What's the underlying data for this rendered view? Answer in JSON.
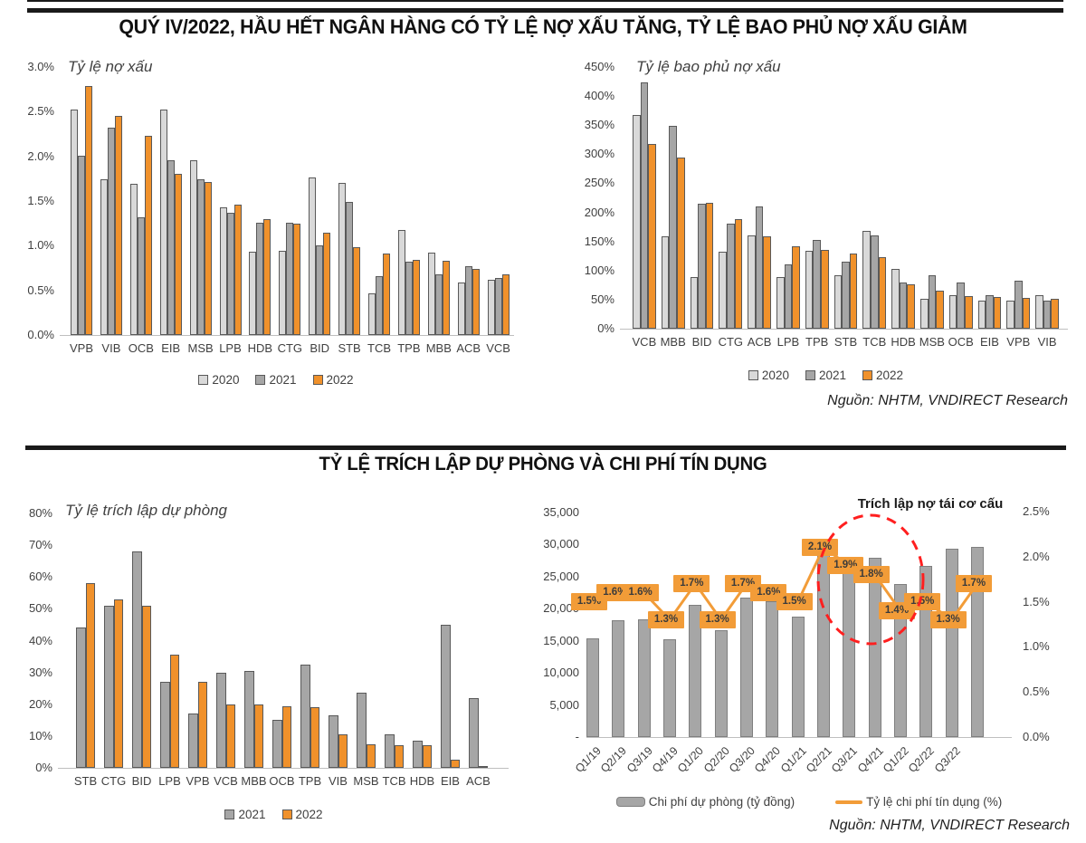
{
  "page": {
    "section1_title": "QUÝ IV/2022, HẦU HẾT NGÂN HÀNG CÓ TỶ LỆ NỢ XẤU TĂNG, TỶ LỆ BAO PHỦ NỢ XẤU GIẢM",
    "section2_title": "TỶ LỆ TRÍCH LẬP DỰ PHÒNG VÀ CHI PHÍ TÍN DỤNG",
    "source_text": "Nguồn: NHTM, VNDIRECT Research"
  },
  "colors": {
    "gray_light": "#D9D9D9",
    "gray_mid": "#A6A6A6",
    "orange": "#F0912B",
    "line_orange": "#F29C38",
    "red_circle": "#FF1F1F",
    "bar_border": "#595959"
  },
  "chart_data": [
    {
      "type": "bar",
      "title": "Tỷ lệ nợ xấu",
      "ylim": [
        0,
        3
      ],
      "ymax": 3,
      "yticks": [
        "3.0%",
        "2.5%",
        "2.0%",
        "1.5%",
        "1.0%",
        "0.5%",
        "0.0%"
      ],
      "legend_position": "bottom",
      "categories": [
        "VPB",
        "VIB",
        "OCB",
        "EIB",
        "MSB",
        "LPB",
        "HDB",
        "CTG",
        "BID",
        "STB",
        "TCB",
        "TPB",
        "MBB",
        "ACB",
        "VCB"
      ],
      "series": [
        {
          "name": "2020",
          "color": "#D9D9D9",
          "values": [
            2.52,
            1.74,
            1.69,
            2.52,
            1.96,
            1.43,
            0.93,
            0.94,
            1.76,
            1.7,
            0.47,
            1.18,
            0.92,
            0.59,
            0.62
          ]
        },
        {
          "name": "2021",
          "color": "#A6A6A6",
          "values": [
            2.01,
            2.32,
            1.32,
            1.96,
            1.74,
            1.37,
            1.26,
            1.26,
            1.0,
            1.49,
            0.66,
            0.82,
            0.68,
            0.77,
            0.64
          ]
        },
        {
          "name": "2022",
          "color": "#F0912B",
          "values": [
            2.79,
            2.45,
            2.23,
            1.8,
            1.71,
            1.46,
            1.3,
            1.25,
            1.15,
            0.98,
            0.91,
            0.84,
            0.83,
            0.74,
            0.68
          ]
        }
      ]
    },
    {
      "type": "bar",
      "title": "Tỷ lệ bao phủ nợ xấu",
      "ylim": [
        0,
        450
      ],
      "ymax": 450,
      "yticks": [
        "450%",
        "400%",
        "350%",
        "300%",
        "250%",
        "200%",
        "150%",
        "100%",
        "50%",
        "0%"
      ],
      "legend_position": "bottom",
      "categories": [
        "VCB",
        "MBB",
        "BID",
        "CTG",
        "ACB",
        "LPB",
        "TPB",
        "STB",
        "TCB",
        "HDB",
        "MSB",
        "OCB",
        "EIB",
        "VPB",
        "VIB"
      ],
      "series": [
        {
          "name": "2020",
          "color": "#D9D9D9",
          "values": [
            368,
            159,
            89,
            132,
            160,
            89,
            134,
            92,
            168,
            103,
            51,
            58,
            48,
            48,
            57
          ]
        },
        {
          "name": "2021",
          "color": "#A6A6A6",
          "values": [
            424,
            349,
            215,
            180,
            210,
            110,
            153,
            115,
            160,
            80,
            92,
            79,
            58,
            83,
            49
          ]
        },
        {
          "name": "2022",
          "color": "#F0912B",
          "values": [
            317,
            295,
            217,
            188,
            159,
            142,
            135,
            129,
            123,
            76,
            66,
            56,
            54,
            53,
            51
          ]
        }
      ]
    },
    {
      "type": "bar",
      "title": "Tỷ lệ trích lập dự phòng",
      "ylim": [
        0,
        80
      ],
      "ymax": 80,
      "yticks": [
        "80%",
        "70%",
        "60%",
        "50%",
        "40%",
        "30%",
        "20%",
        "10%",
        "0%"
      ],
      "legend_position": "bottom",
      "categories": [
        "STB",
        "CTG",
        "BID",
        "LPB",
        "VPB",
        "VCB",
        "MBB",
        "OCB",
        "TPB",
        "VIB",
        "MSB",
        "TCB",
        "HDB",
        "EIB",
        "ACB"
      ],
      "series": [
        {
          "name": "2021",
          "color": "#A6A6A6",
          "values": [
            44,
            51,
            68,
            27,
            17,
            30,
            30.5,
            15,
            32.5,
            16.5,
            23.5,
            10.5,
            8.5,
            45,
            22
          ]
        },
        {
          "name": "2022",
          "color": "#F0912B",
          "values": [
            58,
            53,
            51,
            35.5,
            27,
            20,
            20,
            19.5,
            19,
            10.5,
            7.5,
            7,
            7,
            2.5,
            0.5
          ]
        }
      ]
    },
    {
      "type": "combo",
      "annotation": "Trích lập nợ tái cơ cấu",
      "left_ylim": [
        0,
        35000
      ],
      "right_ylim": [
        0,
        2.5
      ],
      "left_yticks": [
        "35,000",
        "30,000",
        "25,000",
        "20,000",
        "15,000",
        "10,000",
        "5,000",
        "-"
      ],
      "right_yticks": [
        "2.5%",
        "2.0%",
        "1.5%",
        "1.0%",
        "0.5%",
        "0.0%"
      ],
      "categories": [
        "Q1/19",
        "Q2/19",
        "Q3/19",
        "Q4/19",
        "Q1/20",
        "Q2/20",
        "Q3/20",
        "Q4/20",
        "Q1/21",
        "Q2/21",
        "Q3/21",
        "Q4/21",
        "Q1/22",
        "Q2/22",
        "Q3/22",
        ""
      ],
      "bar_series": {
        "name": "Chi phí dự phòng (tỷ đồng)",
        "color": "#A6A6A6",
        "values": [
          15400,
          18200,
          18400,
          15300,
          20600,
          16700,
          21800,
          21100,
          18700,
          30500,
          27800,
          28000,
          23800,
          26700,
          29300,
          29700
        ]
      },
      "line_series": {
        "name": "Tỷ lệ chi phí tín dụng (%)",
        "color": "#F29C38",
        "values": [
          1.5,
          1.6,
          1.6,
          1.3,
          1.7,
          1.3,
          1.7,
          1.6,
          1.5,
          2.1,
          1.9,
          1.8,
          1.4,
          1.5,
          1.3,
          1.7
        ],
        "point_labels": [
          "1.5%",
          "1.6%",
          "1.6%",
          "1.3%",
          "1.7%",
          "1.3%",
          "1.7%",
          "1.6%",
          "1.5%",
          "2.1%",
          "1.9%",
          "1.8%",
          "1.4%",
          "1.5%",
          "1.3%",
          "1.7%"
        ]
      }
    }
  ]
}
